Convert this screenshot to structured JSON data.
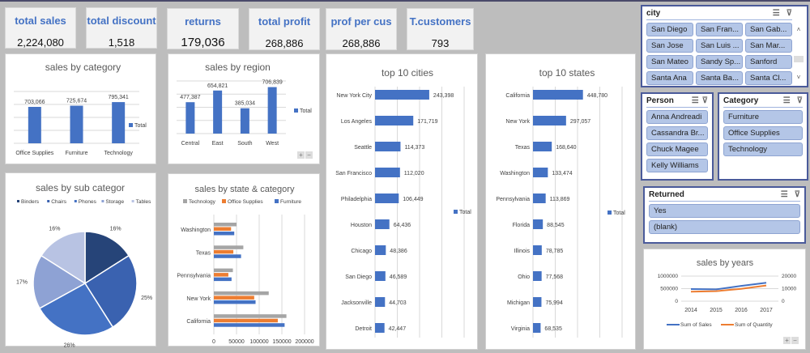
{
  "kpis": [
    {
      "title": "total sales",
      "value": "2,224,080"
    },
    {
      "title": "total discount",
      "value": "1,518"
    },
    {
      "title": "returns",
      "value": "179,036"
    },
    {
      "title": "total profit",
      "value": "268,886"
    },
    {
      "title": "prof per cus",
      "value": "268,886"
    },
    {
      "title": "T.customers",
      "value": "793"
    }
  ],
  "colors": {
    "bar": "#4472c4",
    "technology": "#a5a5a5",
    "office": "#ed7d31",
    "furniture": "#4472c4",
    "sales_line": "#4472c4",
    "qty_line": "#ed7d31"
  },
  "slicers": {
    "city": {
      "title": "city",
      "items": [
        "San Diego",
        "San Fran...",
        "San Gab...",
        "San Jose",
        "San Luis ...",
        "San Mar...",
        "San Mateo",
        "Sandy Sp...",
        "Sanford",
        "Santa Ana",
        "Santa Ba...",
        "Santa Cl..."
      ]
    },
    "person": {
      "title": "Person",
      "items": [
        "Anna Andreadi",
        "Cassandra Br...",
        "Chuck Magee",
        "Kelly Williams"
      ]
    },
    "category": {
      "title": "Category",
      "items": [
        "Furniture",
        "Office Supplies",
        "Technology"
      ]
    },
    "returned": {
      "title": "Returned",
      "items": [
        "Yes",
        "(blank)"
      ]
    }
  },
  "chart_data": [
    {
      "id": "category",
      "type": "bar",
      "title": "sales by category",
      "categories": [
        "Office Supplies",
        "Furniture",
        "Technology"
      ],
      "values": [
        703066,
        725674,
        795341
      ],
      "labels": [
        "703,066",
        "725,674",
        "795,341"
      ],
      "legend": "Total",
      "ylim": [
        0,
        1000000
      ]
    },
    {
      "id": "region",
      "type": "bar",
      "title": "sales by region",
      "categories": [
        "Central",
        "East",
        "South",
        "West"
      ],
      "values": [
        477387,
        654821,
        385034,
        706839
      ],
      "labels": [
        "477,387",
        "654,821",
        "385,034",
        "706,839"
      ],
      "legend": "Total",
      "ylim": [
        0,
        800000
      ]
    },
    {
      "id": "cities",
      "type": "bar",
      "orientation": "horizontal",
      "title": "top 10 cities",
      "categories": [
        "New York City",
        "Los Angeles",
        "Seattle",
        "San Francisco",
        "Philadelphia",
        "Houston",
        "Chicago",
        "San Diego",
        "Jacksonville",
        "Detroit"
      ],
      "values": [
        243398,
        171719,
        114373,
        112020,
        106449,
        64436,
        48386,
        46589,
        44703,
        42447
      ],
      "labels": [
        "243,398",
        "171,719",
        "114,373",
        "112,020",
        "106,449",
        "64,436",
        "48,386",
        "46,589",
        "44,703",
        "42,447"
      ],
      "legend": "Total",
      "xlim": [
        0,
        400000
      ]
    },
    {
      "id": "states",
      "type": "bar",
      "orientation": "horizontal",
      "title": "top 10 states",
      "categories": [
        "California",
        "New York",
        "Texas",
        "Washington",
        "Pennsylvania",
        "Florida",
        "Illinois",
        "Ohio",
        "Michigan",
        "Virginia"
      ],
      "values": [
        448780,
        297057,
        168640,
        133474,
        113869,
        88545,
        78785,
        77568,
        75994,
        68535
      ],
      "labels": [
        "448,780",
        "297,057",
        "168,640",
        "133,474",
        "113,869",
        "88,545",
        "78,785",
        "77,568",
        "75,994",
        "68,535"
      ],
      "legend": "Total",
      "xlim": [
        0,
        800000
      ]
    },
    {
      "id": "subcat",
      "type": "pie",
      "title": "sales by sub categor",
      "categories": [
        "Binders",
        "Chairs",
        "Phones",
        "Storage",
        "Tables"
      ],
      "values": [
        16,
        25,
        26,
        17,
        16
      ],
      "labels": [
        "16%",
        "25%",
        "26%",
        "17%",
        "16%"
      ],
      "colors": [
        "#264478",
        "#3a62b0",
        "#4472c4",
        "#8ea2d4",
        "#b8c3e3"
      ],
      "legend_position": "top"
    },
    {
      "id": "statecat",
      "type": "bar",
      "orientation": "horizontal",
      "title": "sales by state & category",
      "categories": [
        "Washington",
        "Texas",
        "Pennsylvania",
        "New York",
        "California"
      ],
      "series": [
        {
          "name": "Technology",
          "values": [
            50000,
            65000,
            42000,
            121000,
            160000
          ]
        },
        {
          "name": "Office Supplies",
          "values": [
            38000,
            43000,
            32000,
            89000,
            141000
          ]
        },
        {
          "name": "Furniture",
          "values": [
            45000,
            60000,
            39000,
            92000,
            156000
          ]
        }
      ],
      "xticks": [
        "0",
        "50000",
        "100000",
        "150000",
        "200000"
      ],
      "xlim": [
        0,
        200000
      ],
      "legend_position": "top"
    },
    {
      "id": "years",
      "type": "line",
      "title": "sales by years",
      "categories": [
        "2014",
        "2015",
        "2016",
        "2017"
      ],
      "series": [
        {
          "name": "Sum of Sales",
          "axis": "left",
          "values": [
            484247,
            470533,
            609206,
            733215
          ]
        },
        {
          "name": "Sum of Quantity",
          "axis": "right",
          "values": [
            7581,
            7979,
            9837,
            12476
          ]
        }
      ],
      "yticks_left": [
        "1000000",
        "500000",
        "0"
      ],
      "yticks_right": [
        "20000",
        "10000",
        "0"
      ],
      "ylim_left": [
        0,
        1000000
      ],
      "ylim_right": [
        0,
        20000
      ],
      "legend_position": "bottom"
    }
  ]
}
